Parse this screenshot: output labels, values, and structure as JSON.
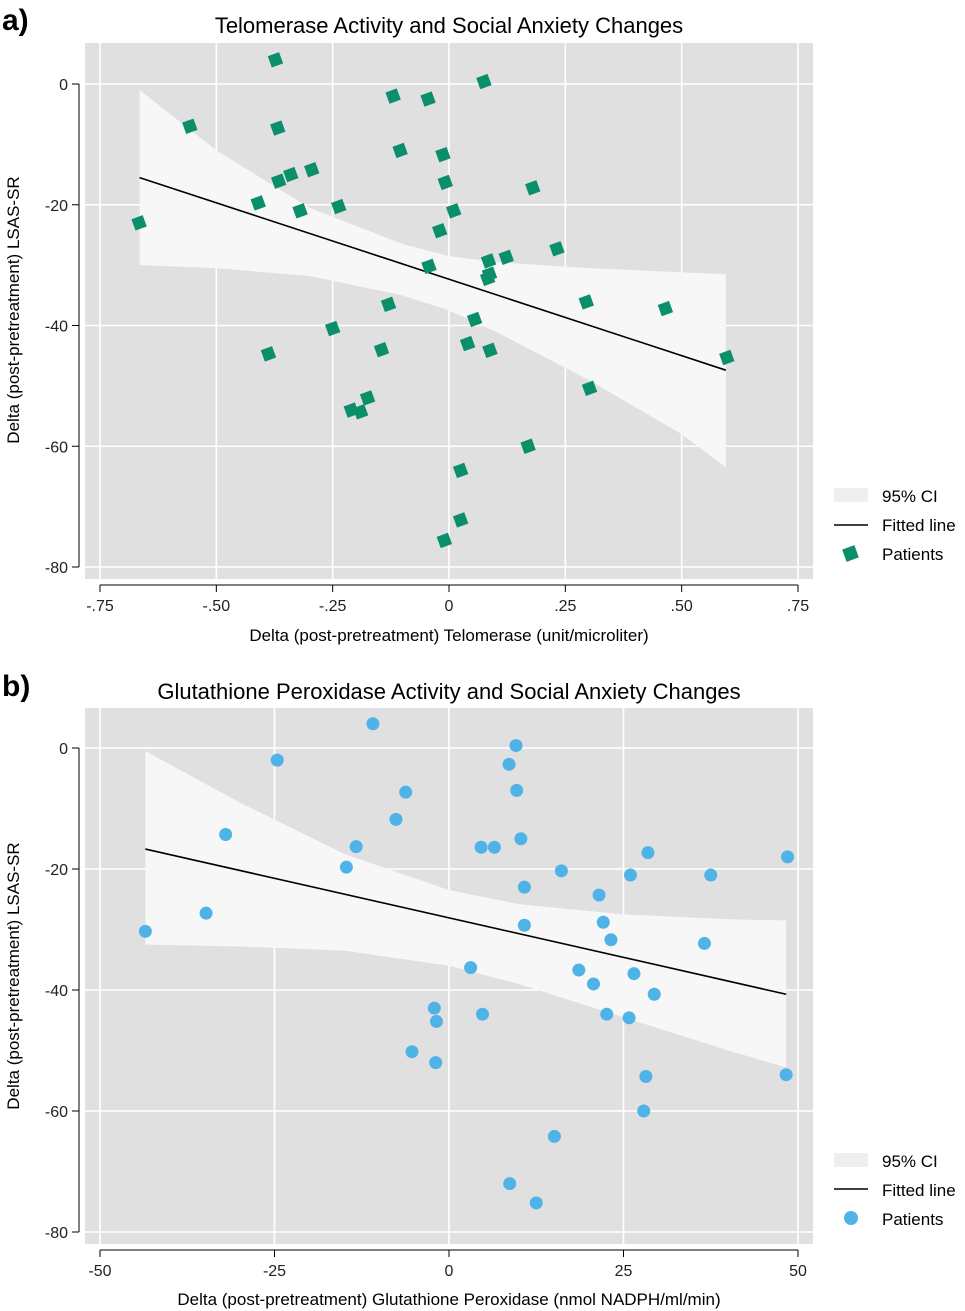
{
  "chart_data": [
    {
      "type": "scatter",
      "panel_label": "a)",
      "title": "Telomerase Activity and Social Anxiety Changes",
      "xlabel": "Delta (post-pretreatment) Telomerase (unit/microliter)",
      "ylabel": "Delta (post-pretreatment) LSAS-SR",
      "xlim": [
        -0.75,
        0.75
      ],
      "ylim": [
        -80,
        0
      ],
      "xticks": [
        -0.75,
        -0.5,
        -0.25,
        0,
        0.25,
        0.5,
        0.75
      ],
      "xtick_labels": [
        "-.75",
        "-.50",
        "-.25",
        "0",
        ".25",
        ".50",
        ".75"
      ],
      "yticks": [
        0,
        -20,
        -40,
        -60,
        -80
      ],
      "ytick_labels": [
        "0",
        "-20",
        "-40",
        "-60",
        "-80"
      ],
      "grid": true,
      "legend_position": "right",
      "legend": {
        "ci": "95% CI",
        "fit": "Fitted line",
        "points": "Patients"
      },
      "marker": "square",
      "colors": {
        "points": "#0a8f6a",
        "ci": "#f7f7f7",
        "line": "#000000",
        "background": "#e0e0e0"
      },
      "fitted_line": {
        "x": [
          -0.665,
          0.595
        ],
        "y": [
          -15.5,
          -47.4
        ]
      },
      "ci_band": {
        "x": [
          -0.665,
          -0.5,
          -0.3,
          -0.1,
          0.0,
          0.1,
          0.3,
          0.5,
          0.595
        ],
        "upper": [
          -1,
          -11,
          -20.5,
          -26.5,
          -28.5,
          -29.5,
          -30.5,
          -31.2,
          -31.5
        ],
        "lower": [
          -30,
          -30.5,
          -31.8,
          -35,
          -37.5,
          -41,
          -49,
          -58,
          -63.5
        ]
      },
      "points": [
        {
          "x": -0.666,
          "y": -23
        },
        {
          "x": -0.557,
          "y": -7
        },
        {
          "x": -0.41,
          "y": -19.7
        },
        {
          "x": -0.388,
          "y": -44.7
        },
        {
          "x": -0.373,
          "y": 4
        },
        {
          "x": -0.368,
          "y": -7.3
        },
        {
          "x": -0.366,
          "y": -16.1
        },
        {
          "x": -0.34,
          "y": -15
        },
        {
          "x": -0.32,
          "y": -21
        },
        {
          "x": -0.295,
          "y": -14.2
        },
        {
          "x": -0.25,
          "y": -40.5
        },
        {
          "x": -0.237,
          "y": -20.3
        },
        {
          "x": -0.21,
          "y": -54
        },
        {
          "x": -0.19,
          "y": -54.3
        },
        {
          "x": -0.175,
          "y": -52
        },
        {
          "x": -0.145,
          "y": -44
        },
        {
          "x": -0.13,
          "y": -36.5
        },
        {
          "x": -0.12,
          "y": -2
        },
        {
          "x": -0.105,
          "y": -11
        },
        {
          "x": -0.045,
          "y": -2.5
        },
        {
          "x": -0.043,
          "y": -30.2
        },
        {
          "x": -0.02,
          "y": -24.3
        },
        {
          "x": -0.013,
          "y": -11.7
        },
        {
          "x": -0.01,
          "y": -75.6
        },
        {
          "x": -0.008,
          "y": -16.3
        },
        {
          "x": 0.01,
          "y": -21
        },
        {
          "x": 0.025,
          "y": -64
        },
        {
          "x": 0.025,
          "y": -72.2
        },
        {
          "x": 0.04,
          "y": -43
        },
        {
          "x": 0.055,
          "y": -39
        },
        {
          "x": 0.075,
          "y": 0.4
        },
        {
          "x": 0.083,
          "y": -32.2
        },
        {
          "x": 0.085,
          "y": -29.3
        },
        {
          "x": 0.087,
          "y": -31.5
        },
        {
          "x": 0.088,
          "y": -44.1
        },
        {
          "x": 0.123,
          "y": -28.7
        },
        {
          "x": 0.17,
          "y": -60
        },
        {
          "x": 0.18,
          "y": -17.2
        },
        {
          "x": 0.232,
          "y": -27.3
        },
        {
          "x": 0.295,
          "y": -36.1
        },
        {
          "x": 0.302,
          "y": -50.4
        },
        {
          "x": 0.465,
          "y": -37.2
        },
        {
          "x": 0.597,
          "y": -45.3
        }
      ]
    },
    {
      "type": "scatter",
      "panel_label": "b)",
      "title": "Glutathione Peroxidase Activity and Social Anxiety Changes",
      "xlabel": "Delta (post-pretreatment) Glutathione Peroxidase (nmol NADPH/ml/min)",
      "ylabel": "Delta (post-pretreatment) LSAS-SR",
      "xlim": [
        -50,
        50
      ],
      "ylim": [
        -80,
        0
      ],
      "xticks": [
        -50,
        -25,
        0,
        25,
        50
      ],
      "xtick_labels": [
        "-50",
        "-25",
        "0",
        "25",
        "50"
      ],
      "yticks": [
        0,
        -20,
        -40,
        -60,
        -80
      ],
      "ytick_labels": [
        "0",
        "-20",
        "-40",
        "-60",
        "-80"
      ],
      "grid": true,
      "legend_position": "right",
      "legend": {
        "ci": "95% CI",
        "fit": "Fitted line",
        "points": "Patients"
      },
      "marker": "circle",
      "colors": {
        "points": "#4fb3e8",
        "ci": "#f7f7f7",
        "line": "#000000",
        "background": "#e0e0e0"
      },
      "fitted_line": {
        "x": [
          -43.5,
          48.3
        ],
        "y": [
          -16.7,
          -40.7
        ]
      },
      "ci_band": {
        "x": [
          -43.5,
          -30,
          -15,
          0,
          10,
          25,
          40,
          48.3
        ],
        "upper": [
          -0.5,
          -9,
          -17.5,
          -23.5,
          -25.8,
          -27.5,
          -28.3,
          -28.5
        ],
        "lower": [
          -32.5,
          -32.8,
          -33.5,
          -36,
          -39,
          -44.5,
          -50,
          -52.8
        ]
      },
      "points": [
        {
          "x": -43.5,
          "y": -30.3
        },
        {
          "x": -34.8,
          "y": -27.3
        },
        {
          "x": -32,
          "y": -14.3
        },
        {
          "x": -24.6,
          "y": -2
        },
        {
          "x": -14.7,
          "y": -19.7
        },
        {
          "x": -13.3,
          "y": -16.3
        },
        {
          "x": -10.9,
          "y": 4
        },
        {
          "x": -7.6,
          "y": -11.8
        },
        {
          "x": -6.2,
          "y": -7.3
        },
        {
          "x": -5.3,
          "y": -50.2
        },
        {
          "x": -2.1,
          "y": -43
        },
        {
          "x": -1.9,
          "y": -52
        },
        {
          "x": -1.8,
          "y": -45.2
        },
        {
          "x": 3.1,
          "y": -36.3
        },
        {
          "x": 4.6,
          "y": -16.4
        },
        {
          "x": 4.8,
          "y": -44
        },
        {
          "x": 6.5,
          "y": -16.4
        },
        {
          "x": 8.6,
          "y": -2.7
        },
        {
          "x": 8.7,
          "y": -72
        },
        {
          "x": 9.6,
          "y": 0.4
        },
        {
          "x": 9.7,
          "y": -7
        },
        {
          "x": 10.3,
          "y": -15
        },
        {
          "x": 10.8,
          "y": -23
        },
        {
          "x": 10.8,
          "y": -29.3
        },
        {
          "x": 12.5,
          "y": -75.2
        },
        {
          "x": 15.1,
          "y": -64.2
        },
        {
          "x": 16.1,
          "y": -20.3
        },
        {
          "x": 18.6,
          "y": -36.7
        },
        {
          "x": 20.7,
          "y": -39
        },
        {
          "x": 21.5,
          "y": -24.3
        },
        {
          "x": 22.1,
          "y": -28.8
        },
        {
          "x": 22.6,
          "y": -44
        },
        {
          "x": 23.2,
          "y": -31.7
        },
        {
          "x": 25.8,
          "y": -44.6
        },
        {
          "x": 26,
          "y": -21
        },
        {
          "x": 26.5,
          "y": -37.3
        },
        {
          "x": 27.9,
          "y": -60
        },
        {
          "x": 28.2,
          "y": -54.3
        },
        {
          "x": 28.5,
          "y": -17.3
        },
        {
          "x": 29.4,
          "y": -40.7
        },
        {
          "x": 36.6,
          "y": -32.3
        },
        {
          "x": 37.5,
          "y": -21
        },
        {
          "x": 48.3,
          "y": -54
        },
        {
          "x": 48.5,
          "y": -18
        }
      ]
    }
  ]
}
